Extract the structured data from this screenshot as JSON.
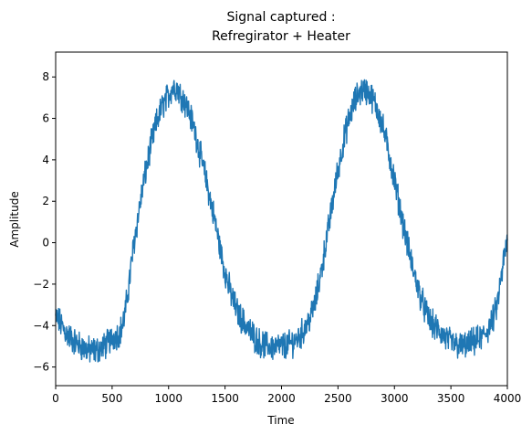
{
  "chart_data": {
    "type": "line",
    "title": "Signal captured :\n Refregirator + Heater",
    "title_lines": [
      "Signal captured :",
      "Refregirator + Heater"
    ],
    "xlabel": "Time",
    "ylabel": "Amplitude",
    "xlim": [
      0,
      4000
    ],
    "ylim": [
      -6.9,
      9.2
    ],
    "grid": false,
    "legend": "none",
    "x_ticks": [
      0,
      500,
      1000,
      1500,
      2000,
      2500,
      3000,
      3500,
      4000
    ],
    "y_ticks": [
      -6,
      -4,
      -2,
      0,
      2,
      4,
      6,
      8
    ],
    "x_tick_labels": [
      "0",
      "500",
      "1000",
      "1500",
      "2000",
      "2500",
      "3000",
      "3500",
      "4000"
    ],
    "y_tick_labels": [
      "−6",
      "−4",
      "−2",
      "0",
      "2",
      "4",
      "6",
      "8"
    ],
    "series": [
      {
        "color": "#1f77b4",
        "x": [
          0,
          100,
          200,
          300,
          400,
          500,
          600,
          700,
          800,
          900,
          1000,
          1050,
          1100,
          1200,
          1300,
          1400,
          1500,
          1600,
          1700,
          1800,
          1900,
          2000,
          2100,
          2200,
          2300,
          2400,
          2500,
          2600,
          2700,
          2800,
          2900,
          3000,
          3100,
          3200,
          3300,
          3400,
          3500,
          3600,
          3700,
          3800,
          3900,
          4000
        ],
        "y": [
          -3.6,
          -4.4,
          -4.9,
          -5.2,
          -5.1,
          -4.6,
          -3.8,
          0.2,
          3.5,
          5.9,
          7.1,
          7.5,
          7.2,
          6.0,
          3.8,
          1.3,
          -1.4,
          -3.2,
          -4.1,
          -4.8,
          -5.0,
          -5.0,
          -4.8,
          -4.2,
          -2.8,
          0.2,
          3.5,
          6.0,
          7.3,
          7.0,
          5.5,
          3.0,
          0.3,
          -2.0,
          -3.6,
          -4.3,
          -4.8,
          -5.0,
          -4.8,
          -4.4,
          -3.2,
          0.0
        ]
      }
    ]
  }
}
